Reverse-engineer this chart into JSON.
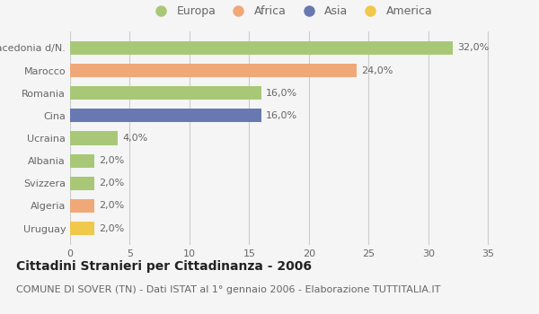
{
  "categories": [
    "Uruguay",
    "Algeria",
    "Svizzera",
    "Albania",
    "Ucraina",
    "Cina",
    "Romania",
    "Marocco",
    "Macedonia d/N."
  ],
  "values": [
    2.0,
    2.0,
    2.0,
    2.0,
    4.0,
    16.0,
    16.0,
    24.0,
    32.0
  ],
  "colors": [
    "#f0c84a",
    "#f0a878",
    "#a8c878",
    "#a8c878",
    "#a8c878",
    "#6878b0",
    "#a8c878",
    "#f0a878",
    "#a8c878"
  ],
  "labels": [
    "2,0%",
    "2,0%",
    "2,0%",
    "2,0%",
    "4,0%",
    "16,0%",
    "16,0%",
    "24,0%",
    "32,0%"
  ],
  "legend_labels": [
    "Europa",
    "Africa",
    "Asia",
    "America"
  ],
  "legend_colors": [
    "#a8c878",
    "#f0a878",
    "#6878b0",
    "#f0c84a"
  ],
  "xlim": [
    0,
    37
  ],
  "xticks": [
    0,
    5,
    10,
    15,
    20,
    25,
    30,
    35
  ],
  "title": "Cittadini Stranieri per Cittadinanza - 2006",
  "subtitle": "COMUNE DI SOVER (TN) - Dati ISTAT al 1° gennaio 2006 - Elaborazione TUTTITALIA.IT",
  "bg_color": "#f5f5f5",
  "grid_color": "#cccccc",
  "bar_height": 0.6,
  "title_fontsize": 10,
  "subtitle_fontsize": 8,
  "label_fontsize": 8,
  "tick_fontsize": 8,
  "legend_fontsize": 9
}
